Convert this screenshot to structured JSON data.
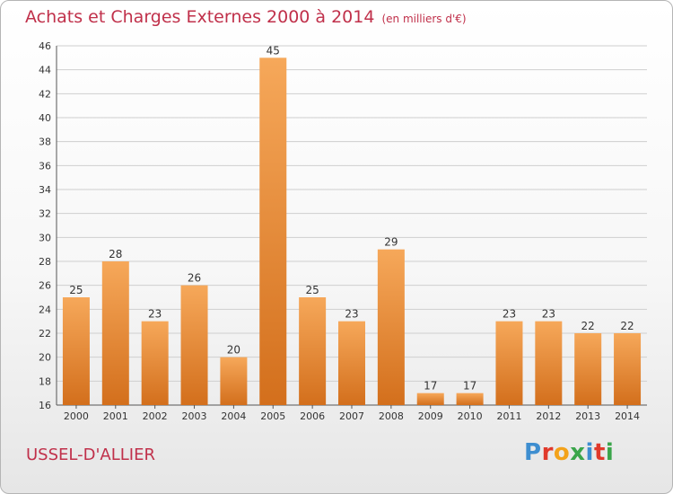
{
  "header": {
    "title": "Achats et Charges Externes 2000 à 2014",
    "unit": "(en milliers d'€)"
  },
  "footer": {
    "commune": "USSEL-D'ALLIER",
    "brand": "Proxiti",
    "brand_colors": [
      "#3e8ed0",
      "#e0392b",
      "#f3a21a",
      "#3aa54a",
      "#3e8ed0",
      "#e0392b",
      "#3aa54a"
    ]
  },
  "colors": {
    "bar_light": "#f6a85a",
    "bar_dark": "#d36f1c",
    "title": "#c0304a",
    "grid": "#cfcfcf"
  },
  "chart_data": {
    "type": "bar",
    "title": "Achats et Charges Externes 2000 à 2014",
    "categories": [
      "2000",
      "2001",
      "2002",
      "2003",
      "2004",
      "2005",
      "2006",
      "2007",
      "2008",
      "2009",
      "2010",
      "2011",
      "2012",
      "2013",
      "2014"
    ],
    "values": [
      25,
      28,
      23,
      26,
      20,
      45,
      25,
      23,
      29,
      17,
      17,
      23,
      23,
      22,
      22
    ],
    "ylim": [
      16,
      46
    ],
    "yticks": [
      16,
      18,
      20,
      22,
      24,
      26,
      28,
      30,
      32,
      34,
      36,
      38,
      40,
      42,
      44,
      46
    ],
    "grid": true,
    "xlabel": "",
    "ylabel": ""
  }
}
